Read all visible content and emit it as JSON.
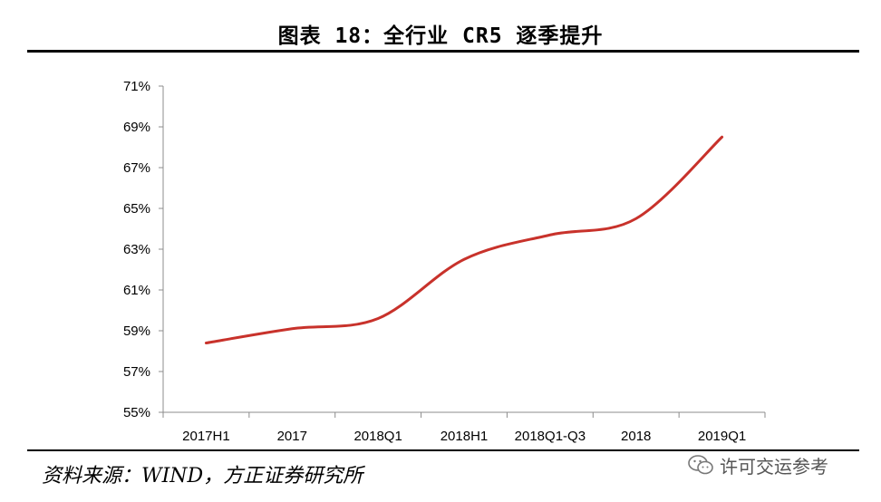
{
  "title": "图表 18：全行业 CR5 逐季提升",
  "source": "资料来源：WIND，方正证券研究所",
  "watermark": {
    "text": "许可交运参考",
    "icon": "wechat-icon"
  },
  "colors": {
    "line": "#c8322b",
    "axis": "#8c8c8c",
    "text": "#000000",
    "rule": "#000000"
  },
  "chart_data": {
    "type": "line",
    "categories": [
      "2017H1",
      "2017",
      "2018Q1",
      "2018H1",
      "2018Q1-Q3",
      "2018",
      "2019Q1"
    ],
    "series": [
      {
        "values": [
          58.4,
          59.1,
          59.6,
          62.5,
          63.7,
          64.5,
          68.5
        ]
      }
    ],
    "y_ticks": [
      "71%",
      "69%",
      "67%",
      "65%",
      "63%",
      "61%",
      "59%",
      "57%",
      "55%"
    ],
    "ylim": [
      55,
      71
    ],
    "ystep": 2,
    "grid": false,
    "smooth": true
  }
}
